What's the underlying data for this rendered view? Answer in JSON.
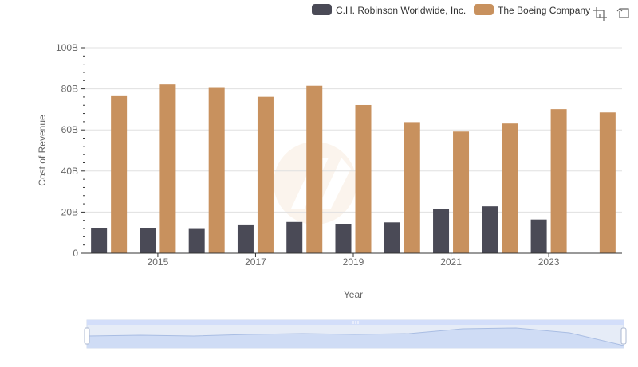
{
  "chart_data": {
    "type": "bar",
    "xlabel": "Year",
    "ylabel": "Cost of Revenue",
    "ylim": [
      0,
      100000000000
    ],
    "y_ticks": [
      0,
      20000000000,
      40000000000,
      60000000000,
      80000000000,
      100000000000
    ],
    "y_tick_labels": [
      "0",
      "20B",
      "40B",
      "60B",
      "80B",
      "100B"
    ],
    "x_tick_labels": [
      "2015",
      "2017",
      "2019",
      "2021",
      "2023"
    ],
    "categories": [
      "2014",
      "2015",
      "2016",
      "2017",
      "2018",
      "2019",
      "2020",
      "2021",
      "2022",
      "2023",
      "2024"
    ],
    "series": [
      {
        "name": "C.H. Robinson Worldwide, Inc.",
        "color": "#4a4a56",
        "values": [
          12300000000,
          12200000000,
          11800000000,
          13600000000,
          15200000000,
          14000000000,
          15000000000,
          21500000000,
          22800000000,
          16400000000,
          null
        ]
      },
      {
        "name": "The Boeing Company",
        "color": "#c8915e",
        "values": [
          76800000000,
          82100000000,
          80800000000,
          76100000000,
          81500000000,
          72100000000,
          63800000000,
          59200000000,
          63100000000,
          70100000000,
          68500000000
        ]
      }
    ],
    "grid": true,
    "legend_position": "top-right"
  },
  "toolbar": {
    "icons": [
      "crop-zoom-icon",
      "restore-icon"
    ]
  }
}
